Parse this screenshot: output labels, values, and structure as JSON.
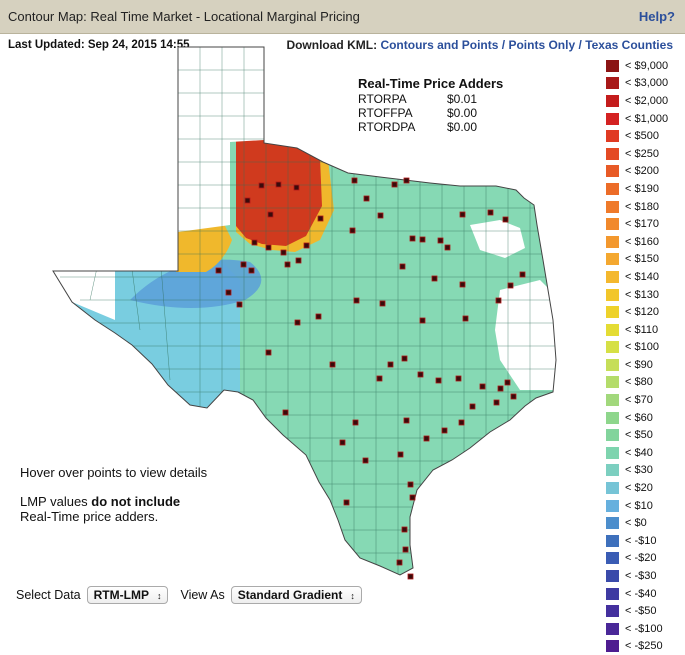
{
  "header": {
    "title": "Contour Map:  Real Time Market - Locational Marginal Pricing",
    "help": "Help?"
  },
  "last_updated": "Last Updated:  Sep 24, 2015 14:55",
  "kml": {
    "label": "Download KML:",
    "links": [
      "Contours and Points",
      "Points Only",
      "Texas Counties"
    ],
    "separator": "/"
  },
  "adders": {
    "title": "Real-Time Price Adders",
    "rows": [
      {
        "name": "RTORPA",
        "value": "$0.01"
      },
      {
        "name": "RTOFFPA",
        "value": "$0.00"
      },
      {
        "name": "RTORDPA",
        "value": "$0.00"
      }
    ]
  },
  "legend": [
    {
      "label": "< $9,000",
      "color": "#8b1414"
    },
    {
      "label": "< $3,000",
      "color": "#a81818"
    },
    {
      "label": "< $2,000",
      "color": "#c41c1c"
    },
    {
      "label": "< $1,000",
      "color": "#d42222"
    },
    {
      "label": "< $500",
      "color": "#e03a22"
    },
    {
      "label": "< $250",
      "color": "#e44a24"
    },
    {
      "label": "< $200",
      "color": "#e85a26"
    },
    {
      "label": "< $190",
      "color": "#ec6c28"
    },
    {
      "label": "< $180",
      "color": "#ef7a2a"
    },
    {
      "label": "< $170",
      "color": "#f1892c"
    },
    {
      "label": "< $160",
      "color": "#f3982e"
    },
    {
      "label": "< $150",
      "color": "#f4a830"
    },
    {
      "label": "< $140",
      "color": "#f4b82e"
    },
    {
      "label": "< $130",
      "color": "#f2c62a"
    },
    {
      "label": "< $120",
      "color": "#eed22a"
    },
    {
      "label": "< $110",
      "color": "#e4dc34"
    },
    {
      "label": "< $100",
      "color": "#d6e046"
    },
    {
      "label": "< $90",
      "color": "#c6de58"
    },
    {
      "label": "< $80",
      "color": "#b4dc6a"
    },
    {
      "label": "< $70",
      "color": "#a2d87c"
    },
    {
      "label": "< $60",
      "color": "#8ed68c"
    },
    {
      "label": "< $50",
      "color": "#82d49c"
    },
    {
      "label": "< $40",
      "color": "#7ed4ae"
    },
    {
      "label": "< $30",
      "color": "#7ccfc0"
    },
    {
      "label": "< $20",
      "color": "#76c4d6"
    },
    {
      "label": "< $10",
      "color": "#66b0de"
    },
    {
      "label": "< $0",
      "color": "#4c8ecc"
    },
    {
      "label": "< -$10",
      "color": "#3e70bc"
    },
    {
      "label": "< -$20",
      "color": "#3a5cb4"
    },
    {
      "label": "< -$30",
      "color": "#3a4aaa"
    },
    {
      "label": "< -$40",
      "color": "#3e3aa2"
    },
    {
      "label": "< -$50",
      "color": "#44309e"
    },
    {
      "label": "< -$100",
      "color": "#4a2898"
    },
    {
      "label": "< -$250",
      "color": "#4e1c90"
    }
  ],
  "info": {
    "hover": "Hover over points to view details",
    "lmp_prefix": "LMP values ",
    "lmp_bold": "do not include",
    "lmp_suffix": "Real-Time price adders."
  },
  "controls": {
    "select_data_label": "Select Data",
    "select_data_value": "RTM-LMP",
    "view_as_label": "View As",
    "view_as_value": "Standard Gradient"
  },
  "map_colors": {
    "base": "#86d9b4",
    "west": "#79cde0",
    "deep_west": "#5a9fd8",
    "hot": "#d03a1e",
    "warm": "#f0b82c",
    "outside": "#ffffff",
    "county_line": "#2f6f5a",
    "point": "#3a0b0b"
  }
}
